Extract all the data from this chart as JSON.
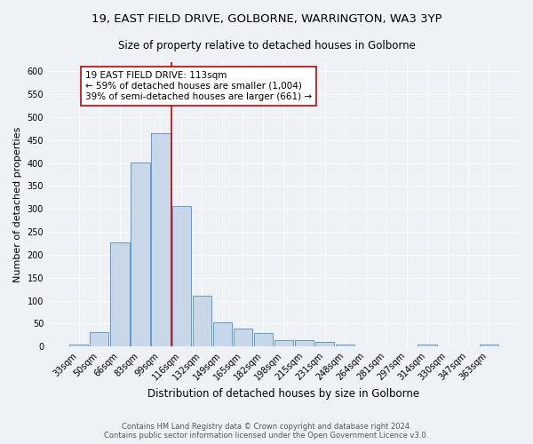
{
  "title1": "19, EAST FIELD DRIVE, GOLBORNE, WARRINGTON, WA3 3YP",
  "title2": "Size of property relative to detached houses in Golborne",
  "xlabel": "Distribution of detached houses by size in Golborne",
  "ylabel": "Number of detached properties",
  "footnote1": "Contains HM Land Registry data © Crown copyright and database right 2024.",
  "footnote2": "Contains public sector information licensed under the Open Government Licence v3.0.",
  "bar_labels": [
    "33sqm",
    "50sqm",
    "66sqm",
    "83sqm",
    "99sqm",
    "116sqm",
    "132sqm",
    "149sqm",
    "165sqm",
    "182sqm",
    "198sqm",
    "215sqm",
    "231sqm",
    "248sqm",
    "264sqm",
    "281sqm",
    "297sqm",
    "314sqm",
    "330sqm",
    "347sqm",
    "363sqm"
  ],
  "bar_values": [
    5,
    32,
    228,
    402,
    465,
    307,
    111,
    53,
    40,
    30,
    14,
    14,
    10,
    5,
    0,
    0,
    0,
    5,
    0,
    0,
    5
  ],
  "bar_color": "#c8d8e8",
  "bar_edge_color": "#5b9bd5",
  "vline_x": 4.5,
  "vline_color": "#cc0000",
  "annotation_text": "19 EAST FIELD DRIVE: 113sqm\n← 59% of detached houses are smaller (1,004)\n39% of semi-detached houses are larger (661) →",
  "annotation_box_color": "#ffffff",
  "annotation_box_edge": "#cc0000",
  "ylim": [
    0,
    620
  ],
  "yticks": [
    0,
    50,
    100,
    150,
    200,
    250,
    300,
    350,
    400,
    450,
    500,
    550,
    600
  ],
  "bg_color": "#eef2f7",
  "grid_color": "#ffffff",
  "title1_fontsize": 9.5,
  "title2_fontsize": 8.5,
  "xlabel_fontsize": 8.5,
  "ylabel_fontsize": 8,
  "tick_fontsize": 7,
  "annot_fontsize": 7.5,
  "footnote_fontsize": 6
}
